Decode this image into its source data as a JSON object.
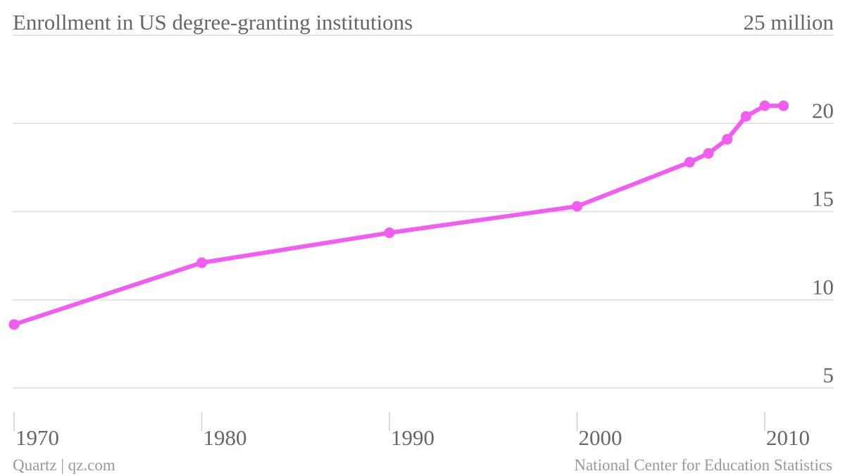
{
  "chart_data": {
    "type": "line",
    "title": "Enrollment in US degree-granting institutions",
    "unit_label": "25 million",
    "x": [
      1970,
      1980,
      1990,
      2000,
      2006,
      2007,
      2008,
      2009,
      2010,
      2011
    ],
    "series": [
      {
        "values": [
          8.6,
          12.1,
          13.8,
          15.3,
          17.8,
          18.3,
          19.1,
          20.4,
          21.0,
          21.0
        ]
      }
    ],
    "x_ticks": [
      1970,
      1980,
      1990,
      2000,
      2010
    ],
    "x_tick_labels": [
      "1970",
      "1980",
      "1990",
      "2000",
      "2010"
    ],
    "y_ticks": [
      5,
      10,
      15,
      20
    ],
    "y_tick_labels": [
      "5",
      "10",
      "15",
      "20"
    ],
    "xlim": [
      1970,
      2011.5
    ],
    "ylim": [
      5,
      25
    ],
    "grid": true,
    "legend": "none",
    "line_color": "#f25cf0"
  },
  "footer": {
    "source_left": "Quartz | qz.com",
    "source_right": "National Center for Education Statistics"
  }
}
